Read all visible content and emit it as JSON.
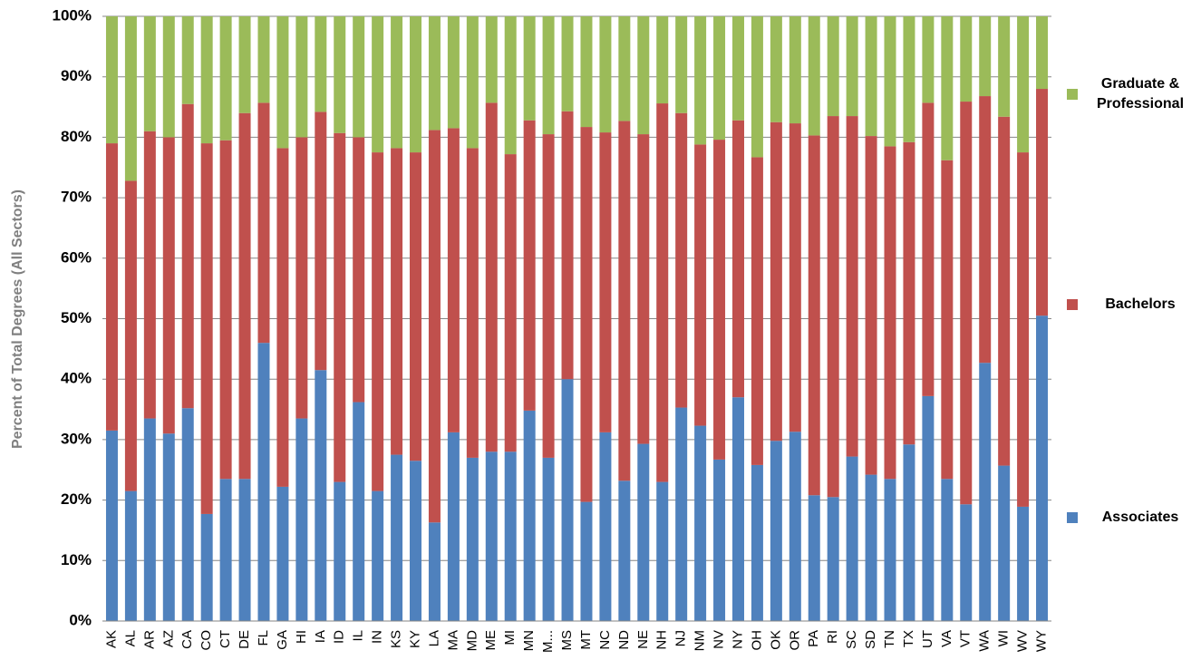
{
  "chart_data": {
    "type": "stacked_bar",
    "y_label": "Percent of Total Degrees (All Sectors)",
    "categories": [
      "AK",
      "AL",
      "AR",
      "AZ",
      "CA",
      "CO",
      "CT",
      "DE",
      "FL",
      "GA",
      "HI",
      "IA",
      "ID",
      "IL",
      "IN",
      "KS",
      "KY",
      "LA",
      "MA",
      "MD",
      "ME",
      "MI",
      "MN",
      "M...",
      "MS",
      "MT",
      "NC",
      "ND",
      "NE",
      "NH",
      "NJ",
      "NM",
      "NV",
      "NY",
      "OH",
      "OK",
      "OR",
      "PA",
      "RI",
      "SC",
      "SD",
      "TN",
      "TX",
      "UT",
      "VA",
      "VT",
      "WA",
      "WI",
      "WV",
      "WY"
    ],
    "series": [
      {
        "name": "Associates",
        "color": "#4f81bd",
        "values": [
          31.5,
          21.5,
          33.5,
          31,
          35.2,
          17.7,
          23.5,
          23.5,
          46,
          22.2,
          33.5,
          41.5,
          23,
          36.2,
          21.5,
          27.5,
          26.5,
          16.3,
          31.2,
          27,
          28,
          28,
          34.8,
          27,
          40,
          19.7,
          31.2,
          23.2,
          29.3,
          23,
          35.3,
          32.3,
          26.7,
          37,
          25.8,
          29.8,
          31.3,
          20.8,
          20.5,
          27.2,
          24.2,
          23.5,
          29.2,
          37.2,
          23.5,
          19.3,
          42.7,
          25.7,
          18.9,
          50.5
        ]
      },
      {
        "name": "Bachelors",
        "color": "#c0504d",
        "values": [
          47.5,
          51.3,
          47.5,
          49,
          50.3,
          61.3,
          56,
          60.5,
          39.7,
          56,
          46.5,
          42.7,
          57.7,
          43.8,
          56,
          50.7,
          51,
          64.9,
          50.3,
          51.2,
          57.7,
          49.2,
          48,
          53.5,
          44.3,
          62,
          49.6,
          59.5,
          51.2,
          62.6,
          48.7,
          46.5,
          52.9,
          45.8,
          50.9,
          52.7,
          51,
          59.5,
          63,
          56.3,
          56,
          55,
          50,
          48.5,
          52.7,
          66.6,
          44.1,
          57.7,
          58.6,
          37.5
        ]
      },
      {
        "name": "Graduate & Professional",
        "color": "#9bbb59",
        "values": [
          21,
          27.2,
          19,
          20,
          14.5,
          21,
          20.5,
          16,
          14.3,
          21.8,
          20,
          15.8,
          19.3,
          20,
          22.5,
          21.8,
          22.5,
          18.8,
          18.5,
          21.8,
          14.3,
          22.8,
          17.2,
          19.5,
          15.7,
          18.3,
          19.2,
          17.3,
          19.5,
          14.4,
          16,
          21.2,
          20.4,
          17.2,
          23.3,
          17.5,
          17.7,
          19.7,
          16.5,
          16.5,
          19.8,
          21.5,
          20.8,
          14.3,
          23.8,
          14.1,
          13.2,
          16.6,
          22.5,
          12
        ]
      }
    ],
    "ylim": [
      0,
      100
    ],
    "yticks": [
      {
        "value": 0,
        "label": "0%"
      },
      {
        "value": 10,
        "label": "10%"
      },
      {
        "value": 20,
        "label": "20%"
      },
      {
        "value": 30,
        "label": "30%"
      },
      {
        "value": 40,
        "label": "40%"
      },
      {
        "value": 50,
        "label": "50%"
      },
      {
        "value": 60,
        "label": "60%"
      },
      {
        "value": 70,
        "label": "70%"
      },
      {
        "value": 80,
        "label": "80%"
      },
      {
        "value": 90,
        "label": "90%"
      },
      {
        "value": 100,
        "label": "100%"
      }
    ],
    "grid": true
  }
}
